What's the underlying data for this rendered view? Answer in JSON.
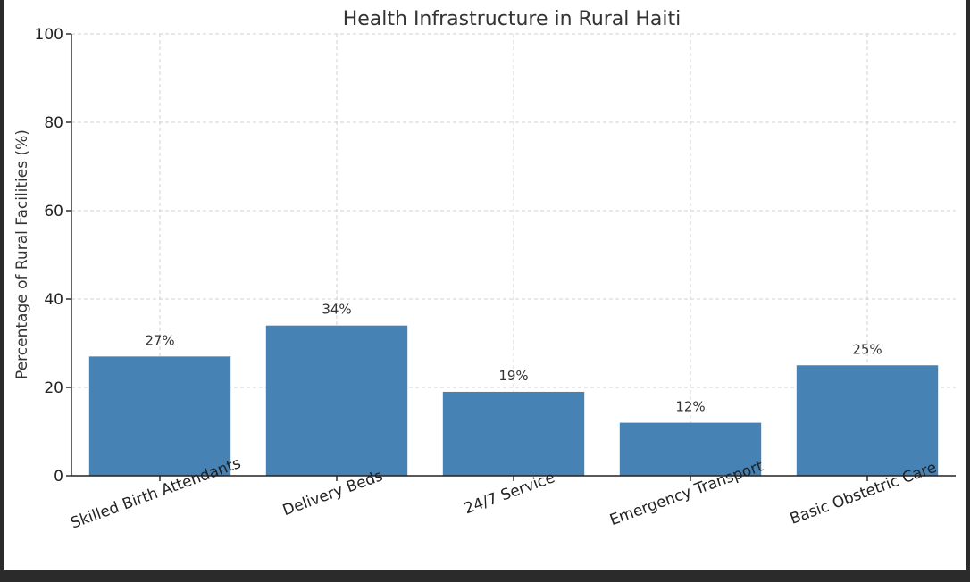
{
  "chart_data": {
    "type": "bar",
    "title": "Health Infrastructure in Rural Haiti",
    "xlabel": "",
    "ylabel": "Percentage of Rural Facilities (%)",
    "categories": [
      "Skilled Birth Attendants",
      "Delivery Beds",
      "24/7 Service",
      "Emergency Transport",
      "Basic Obstetric Care"
    ],
    "values": [
      27,
      34,
      19,
      12,
      25
    ],
    "data_labels": [
      "27%",
      "34%",
      "19%",
      "12%",
      "25%"
    ],
    "yticks": [
      0,
      20,
      40,
      60,
      80,
      100
    ],
    "ylim": [
      0,
      100
    ],
    "grid": true,
    "bar_color": "#4682b4"
  }
}
